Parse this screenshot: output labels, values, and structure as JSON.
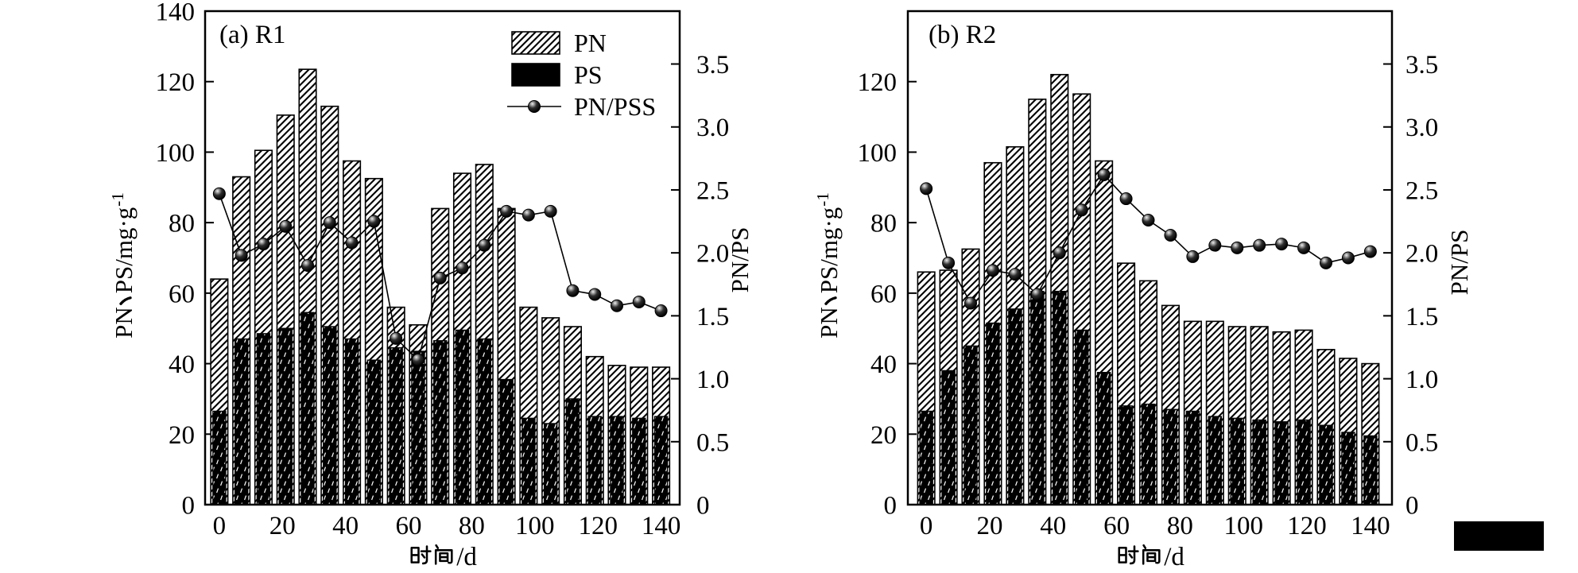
{
  "figure": {
    "background": "#ffffff",
    "ink_color": "#000000",
    "description": "Two-panel scientific figure: hatched/solid bar series on left axis with sphere-marker line series on right axis"
  },
  "chart_data": [
    {
      "type": "bar",
      "subtype": "bar+line",
      "panel_label": "(a) R1",
      "x": [
        0,
        7,
        14,
        21,
        28,
        35,
        42,
        49,
        56,
        63,
        70,
        77,
        84,
        91,
        98,
        105,
        112,
        119,
        126,
        133,
        140
      ],
      "series": [
        {
          "name": "PN",
          "kind": "bar",
          "style": "white-diagonal-hatch",
          "axis": "left",
          "values": [
            64,
            93,
            100.5,
            110.5,
            123.5,
            113,
            97.5,
            92.5,
            56,
            51,
            84,
            94,
            96.5,
            84,
            56,
            53,
            50.5,
            42,
            39.5,
            39,
            39
          ]
        },
        {
          "name": "PS",
          "kind": "bar",
          "style": "black-white-dash-texture",
          "axis": "left",
          "values": [
            26.5,
            47,
            48.5,
            50,
            54.5,
            50.5,
            47,
            41,
            44.5,
            43.5,
            46.5,
            49.5,
            47,
            35.5,
            24.5,
            23,
            30,
            25,
            25,
            24.5,
            25
          ]
        },
        {
          "name": "PN/PSS",
          "kind": "line-scatter",
          "style": "black-line-sphere-markers",
          "axis": "right",
          "values": [
            2.47,
            1.98,
            2.07,
            2.21,
            1.9,
            2.24,
            2.08,
            2.25,
            1.32,
            1.15,
            1.8,
            1.88,
            2.06,
            2.33,
            2.3,
            2.33,
            1.7,
            1.67,
            1.58,
            1.61,
            1.54
          ]
        }
      ],
      "xlabel": "时间/d",
      "ylabel": "PN、 PS/mg·g⁻¹",
      "y2label": "PN/PS",
      "xlim": [
        -4.5,
        145.9
      ],
      "ylim": [
        0,
        140
      ],
      "y2lim": [
        0,
        3.92
      ],
      "xticks": [
        0,
        20,
        40,
        60,
        80,
        100,
        120,
        140
      ],
      "yticks": [
        0,
        20,
        40,
        60,
        80,
        100,
        120,
        140
      ],
      "y2ticks": [
        "0",
        "0.5",
        "1.0",
        "1.5",
        "2.0",
        "2.5",
        "3.0",
        "3.5"
      ],
      "grid": false,
      "legend": {
        "position": "inside-top-center",
        "entries": [
          "PN",
          "PS",
          "PN/PSS"
        ]
      }
    },
    {
      "type": "bar",
      "subtype": "bar+line",
      "panel_label": "(b) R2",
      "x": [
        0,
        7,
        14,
        21,
        28,
        35,
        42,
        49,
        56,
        63,
        70,
        77,
        84,
        91,
        98,
        105,
        112,
        119,
        126,
        133,
        140
      ],
      "series": [
        {
          "name": "PN",
          "kind": "bar",
          "style": "white-diagonal-hatch",
          "axis": "left",
          "values": [
            66,
            66.5,
            72.5,
            97,
            101.5,
            115,
            122,
            116.5,
            97.5,
            68.5,
            63.5,
            56.5,
            52,
            52,
            50.5,
            50.5,
            49,
            49.5,
            44,
            41.5,
            40
          ]
        },
        {
          "name": "PS",
          "kind": "bar",
          "style": "black-white-dash-texture",
          "axis": "left",
          "values": [
            26.5,
            38,
            45,
            51.5,
            55.5,
            60.5,
            60.5,
            49.5,
            37.5,
            28,
            28.5,
            27,
            26.5,
            25,
            24.5,
            24,
            23.5,
            24,
            22.5,
            20.5,
            19.5
          ]
        },
        {
          "name": "PN/PS",
          "kind": "line-scatter",
          "style": "black-line-sphere-markers",
          "axis": "right",
          "values": [
            2.51,
            1.92,
            1.6,
            1.86,
            1.83,
            1.67,
            2.0,
            2.34,
            2.62,
            2.43,
            2.26,
            2.14,
            1.97,
            2.06,
            2.04,
            2.06,
            2.07,
            2.04,
            1.92,
            1.96,
            2.01
          ]
        }
      ],
      "xlabel": "时间/d",
      "ylabel": "PN、 PS/mg·g⁻¹",
      "y2label": "PN/PS",
      "xlim": [
        -5.8,
        146.8
      ],
      "ylim": [
        0,
        140
      ],
      "y2lim": [
        0,
        3.92
      ],
      "xticks": [
        0,
        20,
        40,
        60,
        80,
        100,
        120,
        140
      ],
      "yticks": [
        0,
        20,
        40,
        60,
        80,
        100,
        120
      ],
      "y2ticks": [
        "0",
        "0.5",
        "1.0",
        "1.5",
        "2.0",
        "2.5",
        "3.0",
        "3.5"
      ],
      "grid": false,
      "legend": null
    }
  ]
}
